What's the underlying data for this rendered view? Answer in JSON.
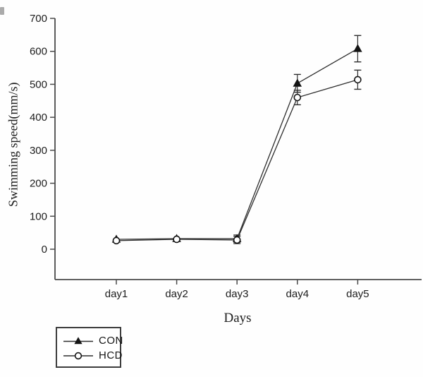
{
  "chart_data": {
    "type": "line",
    "title": "",
    "xlabel": "Days",
    "ylabel": "Swimming speed(mm/s)",
    "x_categories": [
      "day1",
      "day2",
      "day3",
      "day4",
      "day5"
    ],
    "y_ticks": [
      0,
      100,
      200,
      300,
      400,
      500,
      600,
      700
    ],
    "ylim": [
      0,
      700
    ],
    "grid": false,
    "legend_position": "bottom-left-outside",
    "series": [
      {
        "name": "CON",
        "marker": "filled-triangle",
        "values": [
          30,
          32,
          32,
          503,
          608
        ],
        "errors": [
          0,
          0,
          11,
          27,
          40
        ]
      },
      {
        "name": "HCD",
        "marker": "open-circle",
        "values": [
          26,
          30,
          28,
          460,
          514
        ],
        "errors": [
          0,
          0,
          11,
          22,
          29
        ]
      }
    ]
  },
  "colors": {
    "axis": "#4a4a4a",
    "line": "#2e2e2e",
    "marker": "#141414",
    "text": "#1c1c1c",
    "background": "#ffffff"
  }
}
